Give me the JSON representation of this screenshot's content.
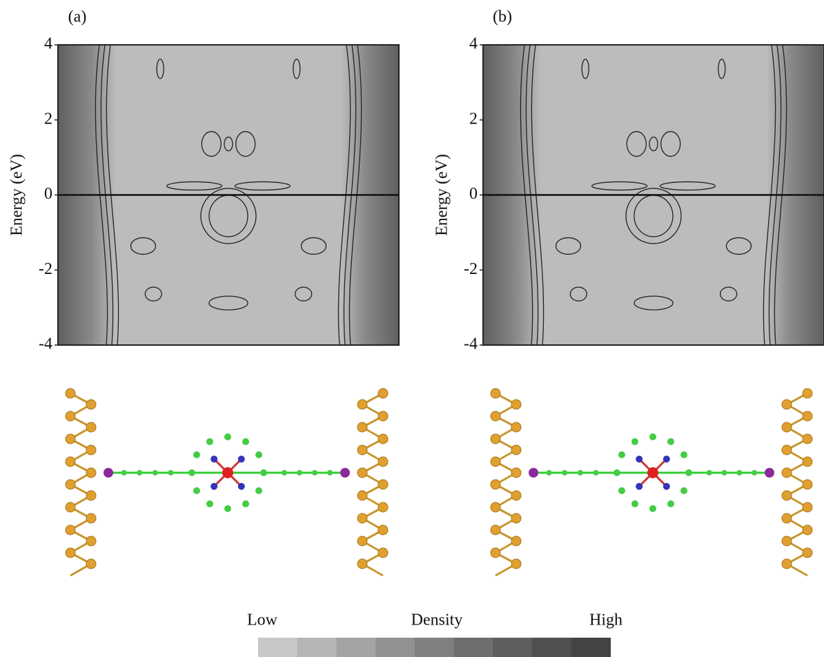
{
  "panels": [
    {
      "label": "(a)",
      "y_label": "Energy (eV)",
      "ylim": [
        -4,
        4
      ],
      "yticks": [
        4,
        2,
        0,
        -2,
        -4
      ]
    },
    {
      "label": "(b)",
      "y_label": "Energy (eV)",
      "ylim": [
        -4,
        4
      ],
      "yticks": [
        4,
        2,
        0,
        -2,
        -4
      ]
    }
  ],
  "colorbar": {
    "low": "Low",
    "title": "Density",
    "high": "High"
  }
}
